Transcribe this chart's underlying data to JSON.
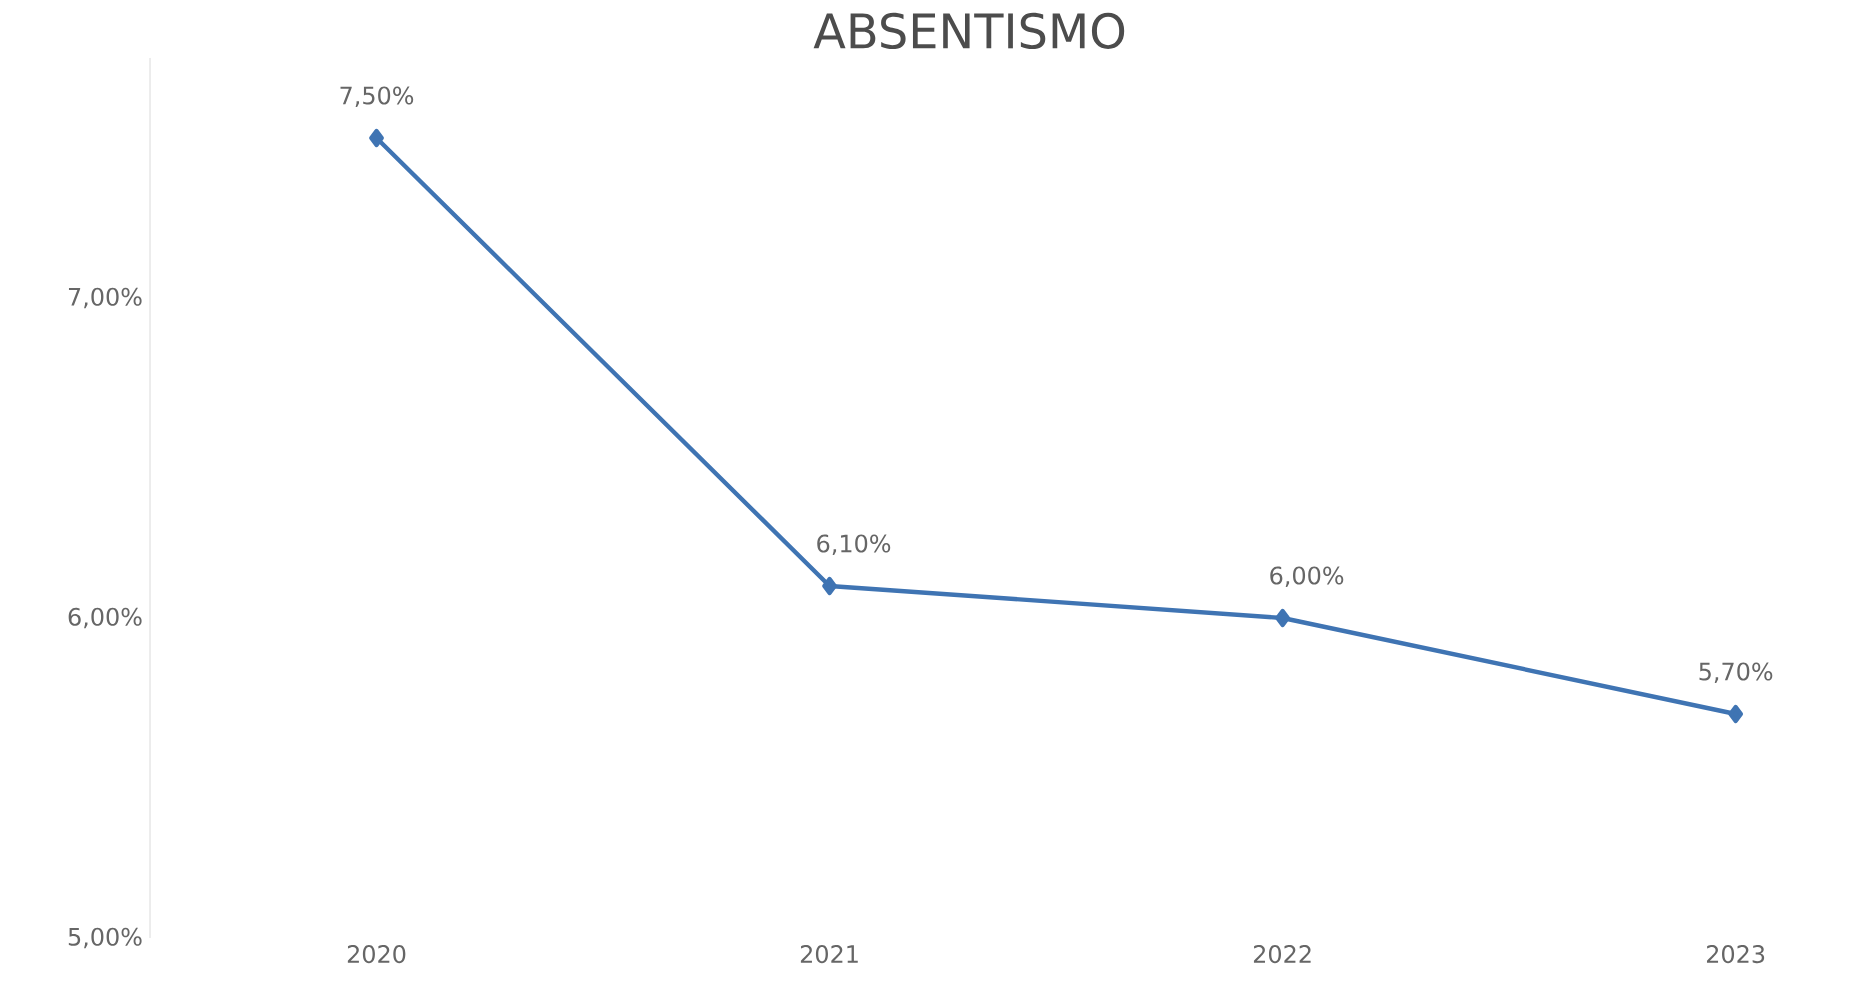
{
  "chart_data": {
    "type": "line",
    "title": "ABSENTISMO",
    "categories": [
      "2020",
      "2021",
      "2022",
      "2023"
    ],
    "series": [
      {
        "color": "#3f74b3",
        "values": [
          7.5,
          6.1,
          6.0,
          5.7
        ],
        "value_labels": [
          "7,50%",
          "6,10%",
          "6,00%",
          "5,70%"
        ]
      }
    ],
    "ylim": [
      5,
      7.75
    ],
    "yticks": [
      {
        "value": 5,
        "label": "5,00%"
      },
      {
        "value": 6,
        "label": "6,00%"
      },
      {
        "value": 7,
        "label": "7,00%"
      }
    ],
    "marker": "diamond",
    "line_style": "solid",
    "legend": false
  }
}
